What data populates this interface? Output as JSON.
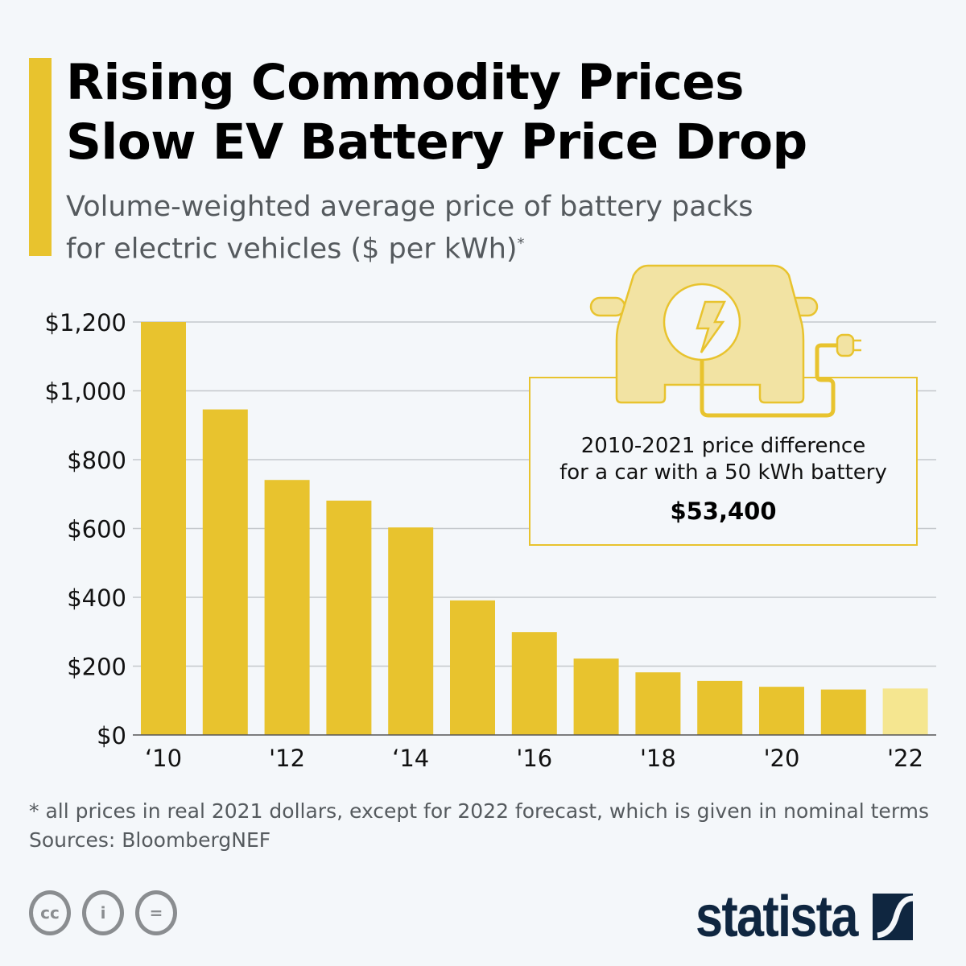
{
  "header": {
    "title_line1": "Rising Commodity Prices",
    "title_line2": "Slow EV Battery Price Drop",
    "subtitle_line1": "Volume-weighted average price of battery packs",
    "subtitle_line2": "for electric vehicles ($ per kWh)",
    "subtitle_mark": "*"
  },
  "callout": {
    "line1": "2010-2021 price difference",
    "line2": "for a car with a 50 kWh battery",
    "value": "$53,400",
    "icon": "electric-car-plug-icon"
  },
  "footer": {
    "note": "* all prices in real 2021 dollars, except for 2022 forecast, which is given in nominal terms",
    "source": "Sources: BloombergNEF",
    "license_icons": [
      "cc-icon",
      "attribution-icon",
      "no-derivatives-icon"
    ],
    "logo": "statista"
  },
  "colors": {
    "bar": "#e8c32e",
    "forecast_bar": "#f5e690",
    "grid": "#c4c8cc",
    "brand": "#0f2640"
  },
  "chart_data": {
    "type": "bar",
    "categories": [
      "2010",
      "2011",
      "2012",
      "2013",
      "2014",
      "2015",
      "2016",
      "2017",
      "2018",
      "2019",
      "2020",
      "2021",
      "2022"
    ],
    "values": [
      1200,
      946,
      741,
      681,
      603,
      391,
      299,
      222,
      182,
      157,
      140,
      132,
      135
    ],
    "forecast": [
      false,
      false,
      false,
      false,
      false,
      false,
      false,
      false,
      false,
      false,
      false,
      false,
      true
    ],
    "x_tick_labels": [
      "‘10",
      "",
      "'12",
      "",
      "‘14",
      "",
      "'16",
      "",
      "'18",
      "",
      "'20",
      "",
      "'22"
    ],
    "y_ticks": [
      0,
      200,
      400,
      600,
      800,
      1000,
      1200
    ],
    "y_tick_labels": [
      "$0",
      "$200",
      "$400",
      "$600",
      "$800",
      "$1,000",
      "$1,200"
    ],
    "ylim": [
      0,
      1200
    ],
    "grid": true,
    "xlabel": "",
    "ylabel": ""
  }
}
